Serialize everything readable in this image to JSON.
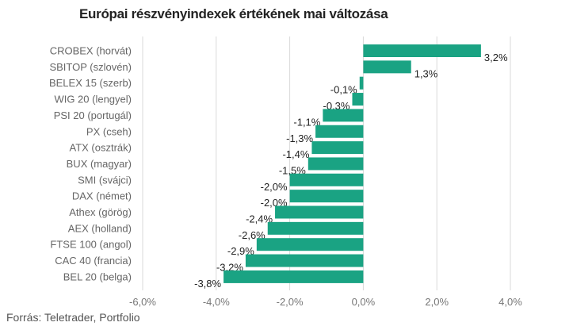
{
  "chart_data": {
    "type": "bar",
    "orientation": "horizontal",
    "title": "Európai részvényindexek értékének mai változása",
    "source": "Forrás: Teletrader, Portfolio",
    "categories": [
      "CROBEX (horvát)",
      "SBITOP (szlovén)",
      "BELEX 15 (szerb)",
      "WIG 20 (lengyel)",
      "PSI 20 (portugál)",
      "PX (cseh)",
      "ATX (osztrák)",
      "BUX (magyar)",
      "SMI (svájci)",
      "DAX (német)",
      "Athex (görög)",
      "AEX (holland)",
      "FTSE 100 (angol)",
      "CAC 40 (francia)",
      "BEL 20 (belga)"
    ],
    "values": [
      3.2,
      1.3,
      -0.1,
      -0.3,
      -1.1,
      -1.3,
      -1.4,
      -1.5,
      -2.0,
      -2.0,
      -2.4,
      -2.6,
      -2.9,
      -3.2,
      -3.8
    ],
    "value_labels": [
      "3,2%",
      "1,3%",
      "-0,1%",
      "-0,3%",
      "-1,1%",
      "-1,3%",
      "-1,4%",
      "-1,5%",
      "-2,0%",
      "-2,0%",
      "-2,4%",
      "-2,6%",
      "-2,9%",
      "-3,2%",
      "-3,8%"
    ],
    "xlim": [
      -6,
      4
    ],
    "ticks": [
      -6,
      -4,
      -2,
      0,
      2,
      4
    ],
    "tick_labels": [
      "-6,0%",
      "-4,0%",
      "-2,0%",
      "0,0%",
      "2,0%",
      "4,0%"
    ],
    "grid": true,
    "legend": "none",
    "bar_color": "#1aa383",
    "grid_color": "#d9d9d9"
  }
}
